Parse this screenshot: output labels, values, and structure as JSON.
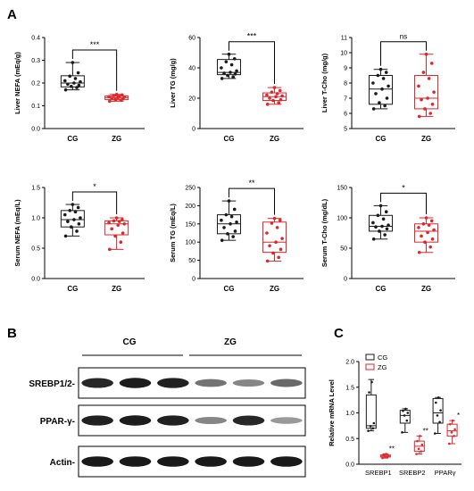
{
  "panel_labels": {
    "a": "A",
    "b": "B",
    "c": "C"
  },
  "colors": {
    "control": "#1a1a1a",
    "treated": "#e0262a"
  },
  "chart_data": [
    {
      "type": "box",
      "ylabel": "Liver NEFA (mEq/g)",
      "ylim": [
        0,
        0.4
      ],
      "yticks": [
        "0.0",
        "0.1",
        "0.2",
        "0.3",
        "0.4"
      ],
      "categories": [
        "CG",
        "ZG"
      ],
      "boxes": [
        {
          "name": "CG",
          "min": 0.17,
          "q1": 0.183,
          "median": 0.2,
          "q3": 0.232,
          "max": 0.29
        },
        {
          "name": "ZG",
          "min": 0.12,
          "q1": 0.127,
          "median": 0.136,
          "q3": 0.143,
          "max": 0.15
        }
      ],
      "points": [
        [
          0.17,
          0.18,
          0.185,
          0.19,
          0.195,
          0.2,
          0.205,
          0.21,
          0.22,
          0.23,
          0.245,
          0.29
        ],
        [
          0.12,
          0.125,
          0.128,
          0.13,
          0.133,
          0.136,
          0.138,
          0.14,
          0.142,
          0.145,
          0.148,
          0.15
        ]
      ],
      "significance": "***"
    },
    {
      "type": "box",
      "ylabel": "Liver TG (mg/g)",
      "ylim": [
        0,
        60
      ],
      "yticks": [
        "0",
        "20",
        "40",
        "60"
      ],
      "categories": [
        "CG",
        "ZG"
      ],
      "boxes": [
        {
          "name": "CG",
          "min": 33,
          "q1": 35.5,
          "median": 37,
          "q3": 45.5,
          "max": 49
        },
        {
          "name": "ZG",
          "min": 16,
          "q1": 18.5,
          "median": 21,
          "q3": 23.5,
          "max": 27
        }
      ],
      "points": [
        [
          33,
          34,
          35,
          36,
          36.5,
          37,
          38,
          40,
          42,
          44,
          46,
          49
        ],
        [
          16,
          17,
          18.5,
          19,
          20,
          21,
          21.5,
          22,
          23,
          24,
          25,
          27
        ]
      ],
      "significance": "***"
    },
    {
      "type": "box",
      "ylabel": "Liver T-Cho (mg/g)",
      "ylim": [
        5,
        11
      ],
      "yticks": [
        "5",
        "6",
        "7",
        "8",
        "9",
        "10",
        "11"
      ],
      "categories": [
        "CG",
        "ZG"
      ],
      "boxes": [
        {
          "name": "CG",
          "min": 6.3,
          "q1": 6.6,
          "median": 7.6,
          "q3": 8.5,
          "max": 8.9
        },
        {
          "name": "ZG",
          "min": 5.8,
          "q1": 6.3,
          "median": 7.0,
          "q3": 8.5,
          "max": 9.9
        }
      ],
      "points": [
        [
          6.3,
          6.5,
          6.7,
          7.0,
          7.3,
          7.6,
          7.8,
          8.0,
          8.3,
          8.5,
          8.7,
          8.9
        ],
        [
          5.8,
          6.0,
          6.3,
          6.6,
          6.9,
          7.0,
          7.4,
          7.8,
          8.3,
          8.7,
          9.3,
          9.9
        ]
      ],
      "significance": "ns"
    },
    {
      "type": "box",
      "ylabel": "Serum NEFA (mEq/L)",
      "ylim": [
        0,
        1.5
      ],
      "yticks": [
        "0.0",
        "0.5",
        "1.0",
        "1.5"
      ],
      "categories": [
        "CG",
        "ZG"
      ],
      "boxes": [
        {
          "name": "CG",
          "min": 0.7,
          "q1": 0.85,
          "median": 0.97,
          "q3": 1.12,
          "max": 1.22
        },
        {
          "name": "ZG",
          "min": 0.48,
          "q1": 0.72,
          "median": 0.9,
          "q3": 0.95,
          "max": 1.0
        }
      ],
      "points": [
        [
          0.7,
          0.78,
          0.85,
          0.9,
          0.94,
          0.97,
          1.0,
          1.05,
          1.1,
          1.12,
          1.17,
          1.22
        ],
        [
          0.48,
          0.6,
          0.7,
          0.75,
          0.82,
          0.88,
          0.9,
          0.92,
          0.94,
          0.95,
          0.97,
          1.0
        ]
      ],
      "significance": "*"
    },
    {
      "type": "box",
      "ylabel": "Serum TG (mEq/L)",
      "ylim": [
        0,
        250
      ],
      "yticks": [
        "0",
        "50",
        "100",
        "150",
        "200",
        "250"
      ],
      "categories": [
        "CG",
        "ZG"
      ],
      "boxes": [
        {
          "name": "CG",
          "min": 105,
          "q1": 123,
          "median": 150,
          "q3": 175,
          "max": 213
        },
        {
          "name": "ZG",
          "min": 48,
          "q1": 72,
          "median": 100,
          "q3": 155,
          "max": 165
        }
      ],
      "points": [
        [
          105,
          115,
          123,
          130,
          140,
          150,
          155,
          160,
          170,
          175,
          190,
          213
        ],
        [
          48,
          58,
          70,
          80,
          90,
          100,
          110,
          125,
          140,
          152,
          160,
          165
        ]
      ],
      "significance": "**"
    },
    {
      "type": "box",
      "ylabel": "Serum T-Cho (mg/dL)",
      "ylim": [
        0,
        150
      ],
      "yticks": [
        "0",
        "50",
        "100",
        "150"
      ],
      "categories": [
        "CG",
        "ZG"
      ],
      "boxes": [
        {
          "name": "CG",
          "min": 65,
          "q1": 78,
          "median": 86,
          "q3": 104,
          "max": 120
        },
        {
          "name": "ZG",
          "min": 43,
          "q1": 60,
          "median": 78,
          "q3": 90,
          "max": 100
        }
      ],
      "points": [
        [
          65,
          72,
          78,
          82,
          85,
          86,
          88,
          92,
          98,
          104,
          110,
          120
        ],
        [
          43,
          52,
          60,
          65,
          70,
          76,
          80,
          84,
          88,
          90,
          95,
          100
        ]
      ],
      "significance": "*"
    },
    {
      "type": "box",
      "ylabel": "Relative mRNA Level",
      "ylim": [
        0,
        2.0
      ],
      "yticks": [
        "0.0",
        "0.5",
        "1.0",
        "1.5",
        "2.0"
      ],
      "categories": [
        "SREBP1",
        "SREBP2",
        "PPARγ"
      ],
      "legend": [
        "CG",
        "ZG"
      ],
      "legend_position": "top-left",
      "series": [
        {
          "name": "CG",
          "boxes": [
            {
              "min": 0.65,
              "q1": 0.7,
              "median": 0.75,
              "q3": 1.35,
              "max": 1.65
            },
            {
              "min": 0.62,
              "q1": 0.8,
              "median": 0.95,
              "q3": 1.05,
              "max": 1.08
            },
            {
              "min": 0.6,
              "q1": 0.8,
              "median": 1.0,
              "q3": 1.28,
              "max": 1.3
            }
          ],
          "points": [
            [
              0.65,
              0.7,
              0.74,
              0.8,
              1.4,
              1.6
            ],
            [
              0.62,
              0.85,
              0.95,
              1.0,
              1.04,
              1.08
            ],
            [
              0.6,
              0.82,
              0.95,
              1.05,
              1.2,
              1.3
            ]
          ]
        },
        {
          "name": "ZG",
          "boxes": [
            {
              "min": 0.12,
              "q1": 0.14,
              "median": 0.16,
              "q3": 0.18,
              "max": 0.2
            },
            {
              "min": 0.2,
              "q1": 0.25,
              "median": 0.35,
              "q3": 0.45,
              "max": 0.55
            },
            {
              "min": 0.4,
              "q1": 0.55,
              "median": 0.65,
              "q3": 0.78,
              "max": 0.85
            }
          ],
          "points": [
            [
              0.12,
              0.14,
              0.15,
              0.16,
              0.18,
              0.2
            ],
            [
              0.2,
              0.25,
              0.3,
              0.38,
              0.45,
              0.55
            ],
            [
              0.4,
              0.55,
              0.62,
              0.68,
              0.78,
              0.85
            ]
          ]
        }
      ],
      "significance": [
        "**",
        "**",
        "*"
      ]
    }
  ],
  "blot": {
    "group_labels": [
      "CG",
      "ZG"
    ],
    "rows": [
      {
        "label": "SREBP1/2-",
        "intensities": [
          0.85,
          0.9,
          0.88,
          0.45,
          0.35,
          0.5
        ]
      },
      {
        "label": "PPAR-γ-",
        "intensities": [
          0.88,
          0.9,
          0.88,
          0.35,
          0.85,
          0.25
        ]
      },
      {
        "label": "Actin-",
        "intensities": [
          0.92,
          0.92,
          0.92,
          0.92,
          0.92,
          0.92
        ]
      }
    ]
  }
}
